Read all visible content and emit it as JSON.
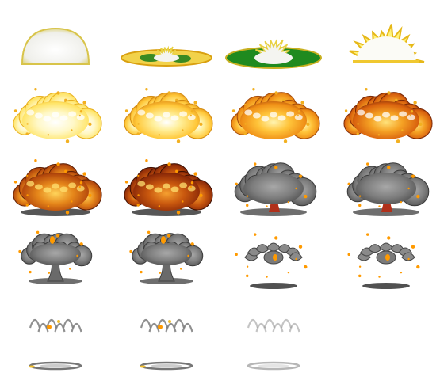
{
  "sheet": {
    "rows": 6,
    "cols": 4,
    "background": "#ffffff"
  },
  "frames": [
    {
      "id": "f01",
      "type": "dome",
      "palette": "white"
    },
    {
      "id": "f02",
      "type": "flash-disc",
      "palette": "yellow-green-small"
    },
    {
      "id": "f03",
      "type": "flash-disc",
      "palette": "green-large"
    },
    {
      "id": "f04",
      "type": "flash-starburst",
      "palette": "yellow"
    },
    {
      "id": "f05",
      "type": "fireball",
      "palette": "pale-yellow"
    },
    {
      "id": "f06",
      "type": "fireball",
      "palette": "yellow"
    },
    {
      "id": "f07",
      "type": "fireball",
      "palette": "orange"
    },
    {
      "id": "f08",
      "type": "fireball",
      "palette": "deep-orange"
    },
    {
      "id": "f09",
      "type": "fireball",
      "palette": "orange-brown"
    },
    {
      "id": "f10",
      "type": "fireball",
      "palette": "red-brown"
    },
    {
      "id": "f11",
      "type": "smoke-cloud",
      "palette": "gray-embers"
    },
    {
      "id": "f12",
      "type": "smoke-cloud",
      "palette": "gray-embers"
    },
    {
      "id": "f13",
      "type": "mushroom",
      "palette": "gray"
    },
    {
      "id": "f14",
      "type": "mushroom",
      "palette": "gray"
    },
    {
      "id": "f15",
      "type": "breaking-cloud",
      "palette": "gray"
    },
    {
      "id": "f16",
      "type": "breaking-cloud",
      "palette": "gray"
    },
    {
      "id": "f17",
      "type": "wisps",
      "palette": "light-gray"
    },
    {
      "id": "f18",
      "type": "wisps",
      "palette": "light-gray"
    },
    {
      "id": "f19",
      "type": "wisps",
      "palette": "faint-gray"
    },
    {
      "id": "f20",
      "type": "empty",
      "palette": "none"
    },
    {
      "id": "f21",
      "type": "shadow-ring",
      "palette": "gray"
    },
    {
      "id": "f22",
      "type": "shadow-ring",
      "palette": "gray"
    },
    {
      "id": "f23",
      "type": "shadow-ring",
      "palette": "faint-gray"
    },
    {
      "id": "f24",
      "type": "empty",
      "palette": "none"
    }
  ],
  "colors": {
    "flash_white": "#f4f4f0",
    "flash_yellow": "#fff27a",
    "flash_green": "#1f8a1f",
    "fire_light": "#fff6b0",
    "fire_yellow": "#ffd43a",
    "fire_orange": "#f29a18",
    "fire_deep": "#d2600e",
    "fire_red": "#a8300c",
    "smoke": "#7a7a7a",
    "smoke_dark": "#4d4d4d",
    "smoke_light": "#a3a3a3",
    "shadow": "#5e5e5e",
    "ember": "#ff9a00"
  }
}
